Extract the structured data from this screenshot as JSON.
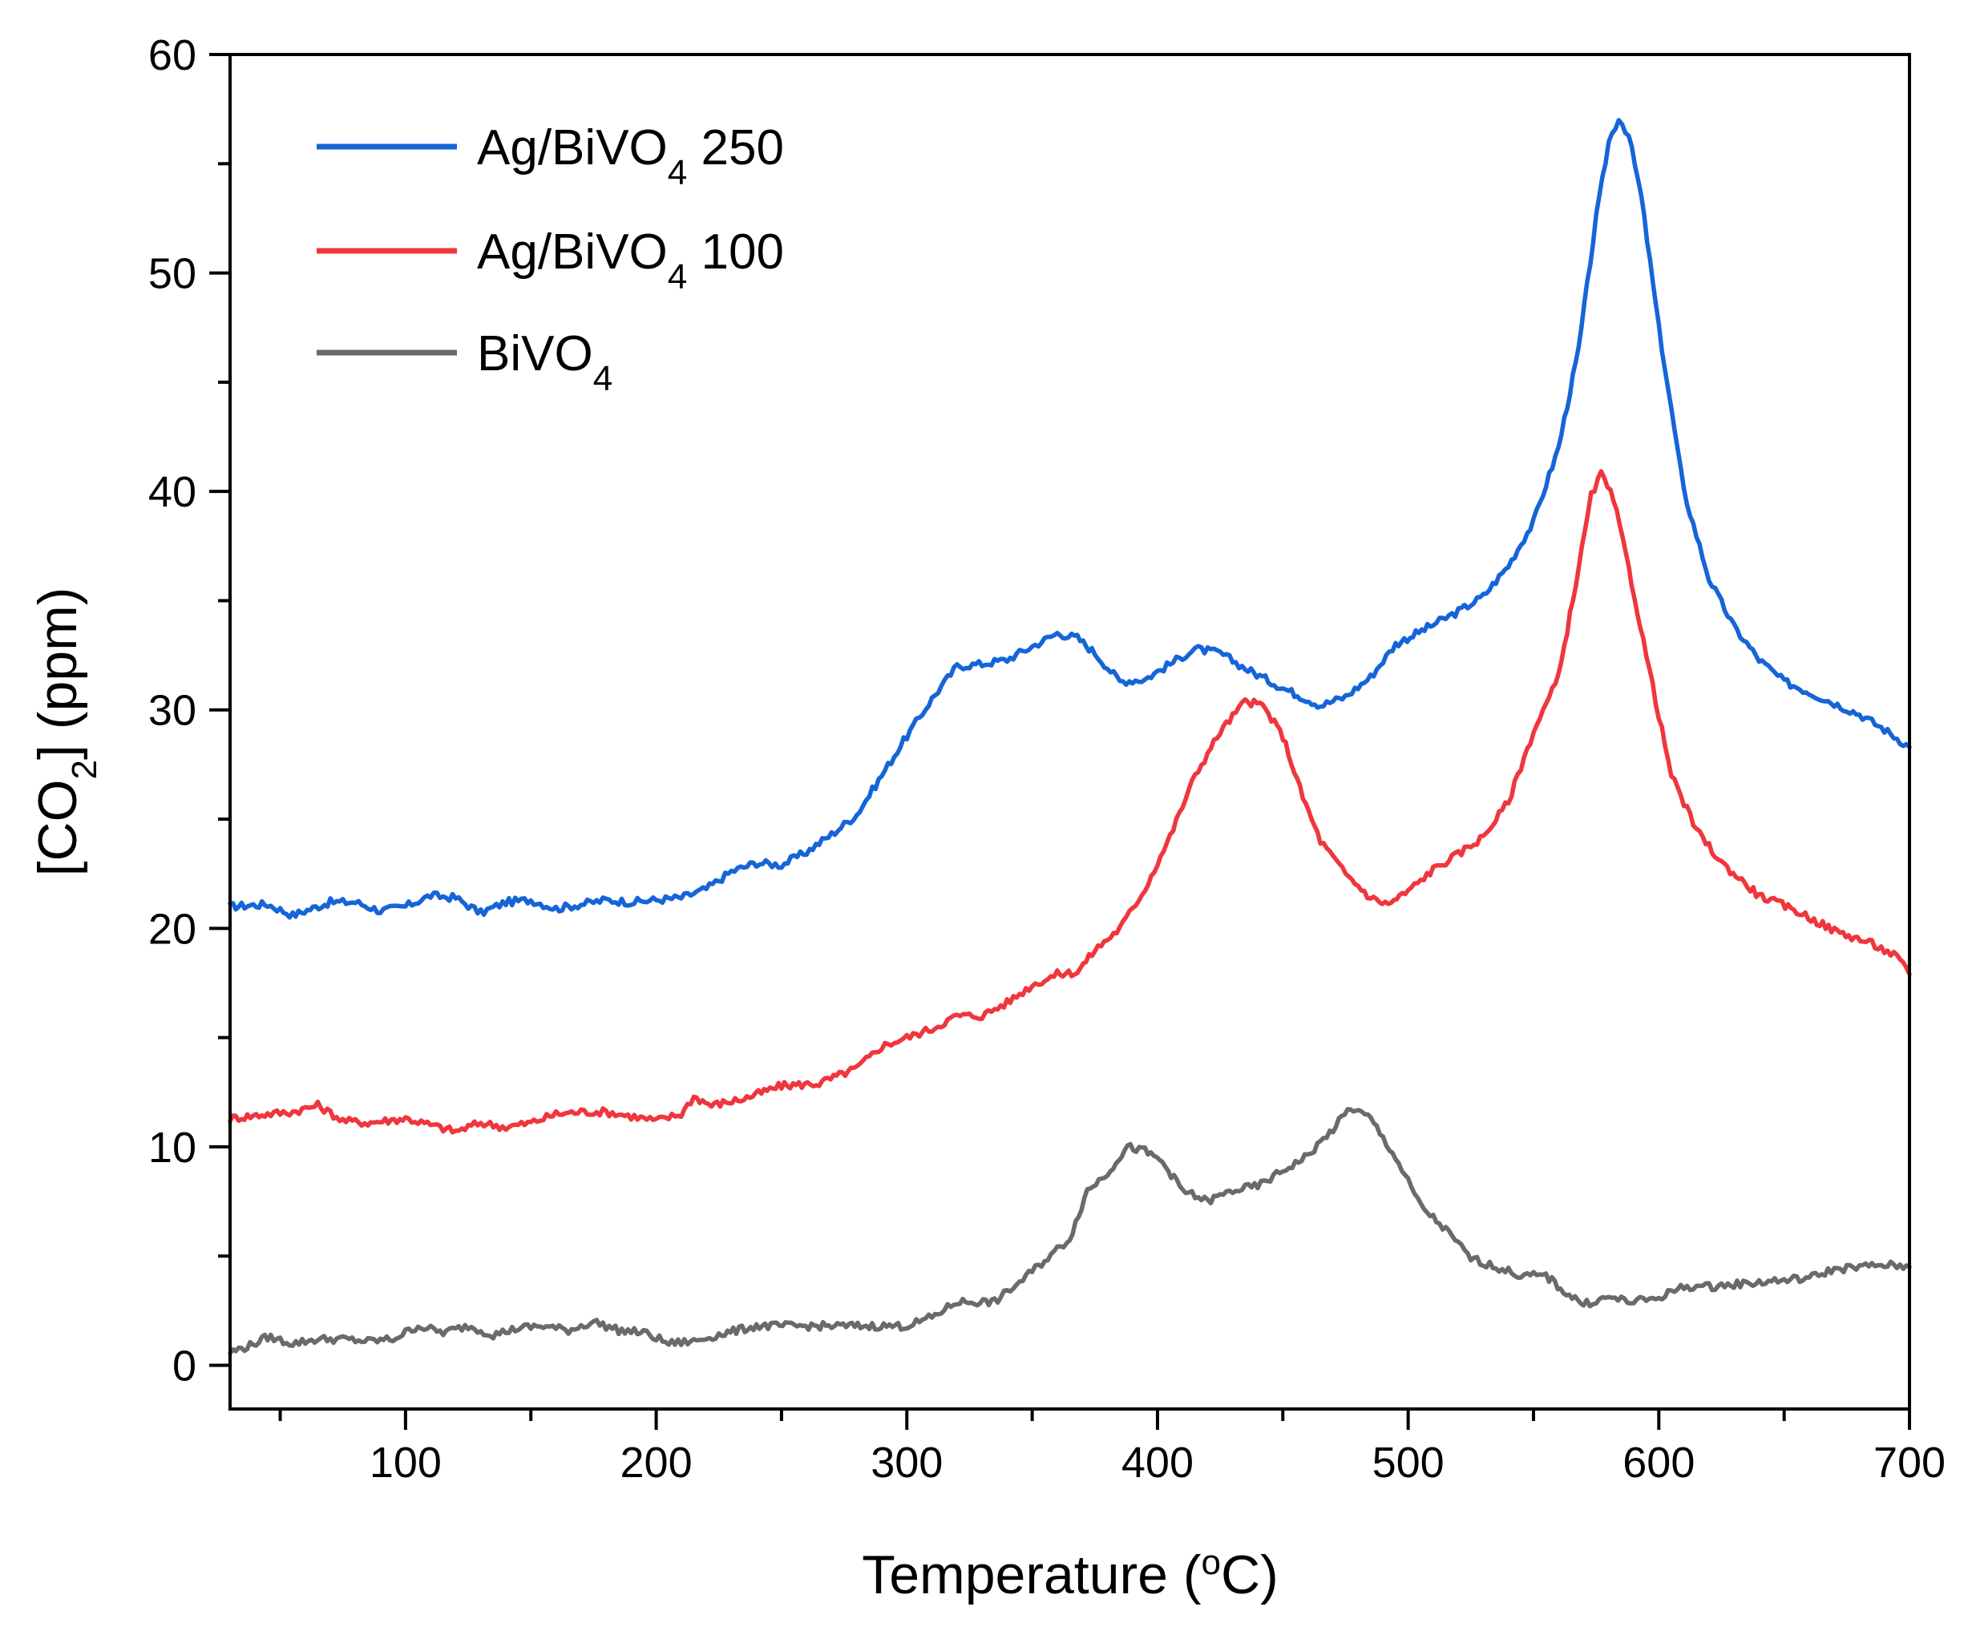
{
  "chart_data": {
    "type": "line",
    "title": "",
    "xlabel": "Temperature (oC)",
    "xlabel_parts": {
      "main": "Temperature (",
      "sup": "o",
      "tail": "C)"
    },
    "ylabel": "[CO2] (ppm)",
    "ylabel_parts": {
      "main": "[CO",
      "sub": "2",
      "tail": "] (ppm)"
    },
    "xlim": [
      30,
      700
    ],
    "ylim": [
      -2,
      60
    ],
    "xticks": [
      100,
      200,
      300,
      400,
      500,
      600,
      700
    ],
    "xtick_labels": [
      "100",
      "200",
      "300",
      "400",
      "500",
      "600",
      "700"
    ],
    "yticks": [
      0,
      10,
      20,
      30,
      40,
      50,
      60
    ],
    "ytick_labels": [
      "0",
      "10",
      "20",
      "30",
      "40",
      "50",
      "60"
    ],
    "grid": false,
    "legend_position": "top-left",
    "series": [
      {
        "name": "Ag/BiVO4 250",
        "label_parts": {
          "main": "Ag/BiVO",
          "sub": "4",
          "tail": " 250"
        },
        "color": "#1565d8",
        "points": [
          [
            30,
            21.0
          ],
          [
            45,
            21.1
          ],
          [
            55,
            20.6
          ],
          [
            70,
            21.2
          ],
          [
            80,
            21.2
          ],
          [
            90,
            20.8
          ],
          [
            100,
            21.0
          ],
          [
            110,
            21.5
          ],
          [
            120,
            21.4
          ],
          [
            130,
            20.7
          ],
          [
            140,
            21.2
          ],
          [
            150,
            21.3
          ],
          [
            160,
            20.9
          ],
          [
            170,
            21.1
          ],
          [
            180,
            21.3
          ],
          [
            190,
            21.2
          ],
          [
            200,
            21.3
          ],
          [
            210,
            21.4
          ],
          [
            220,
            21.8
          ],
          [
            230,
            22.6
          ],
          [
            240,
            23.0
          ],
          [
            250,
            22.9
          ],
          [
            260,
            23.5
          ],
          [
            270,
            24.3
          ],
          [
            280,
            25.2
          ],
          [
            290,
            27.0
          ],
          [
            300,
            28.8
          ],
          [
            310,
            30.5
          ],
          [
            320,
            32.0
          ],
          [
            330,
            32.1
          ],
          [
            340,
            32.3
          ],
          [
            350,
            32.9
          ],
          [
            360,
            33.5
          ],
          [
            368,
            33.3
          ],
          [
            375,
            32.6
          ],
          [
            385,
            31.3
          ],
          [
            395,
            31.4
          ],
          [
            405,
            32.1
          ],
          [
            415,
            32.8
          ],
          [
            425,
            32.6
          ],
          [
            435,
            31.9
          ],
          [
            450,
            31.0
          ],
          [
            465,
            30.2
          ],
          [
            475,
            30.6
          ],
          [
            485,
            31.5
          ],
          [
            495,
            33.0
          ],
          [
            510,
            33.9
          ],
          [
            520,
            34.5
          ],
          [
            530,
            35.2
          ],
          [
            540,
            36.6
          ],
          [
            550,
            38.6
          ],
          [
            560,
            42.0
          ],
          [
            568,
            46.5
          ],
          [
            575,
            52.5
          ],
          [
            580,
            56.0
          ],
          [
            584,
            57.1
          ],
          [
            588,
            56.3
          ],
          [
            593,
            53.5
          ],
          [
            600,
            47.5
          ],
          [
            610,
            40.0
          ],
          [
            620,
            36.0
          ],
          [
            630,
            33.8
          ],
          [
            640,
            32.3
          ],
          [
            650,
            31.3
          ],
          [
            660,
            30.8
          ],
          [
            670,
            30.3
          ],
          [
            680,
            29.8
          ],
          [
            690,
            29.1
          ],
          [
            700,
            28.3
          ]
        ]
      },
      {
        "name": "Ag/BiVO4 100",
        "label_parts": {
          "main": "Ag/BiVO",
          "sub": "4",
          "tail": " 100"
        },
        "color": "#f0363d",
        "points": [
          [
            30,
            11.3
          ],
          [
            45,
            11.5
          ],
          [
            55,
            11.6
          ],
          [
            65,
            11.9
          ],
          [
            75,
            11.2
          ],
          [
            85,
            11.1
          ],
          [
            100,
            11.3
          ],
          [
            110,
            11.0
          ],
          [
            120,
            10.7
          ],
          [
            130,
            11.1
          ],
          [
            140,
            10.9
          ],
          [
            150,
            11.1
          ],
          [
            160,
            11.5
          ],
          [
            170,
            11.6
          ],
          [
            180,
            11.6
          ],
          [
            190,
            11.4
          ],
          [
            200,
            11.2
          ],
          [
            210,
            11.5
          ],
          [
            215,
            12.3
          ],
          [
            222,
            11.9
          ],
          [
            235,
            12.2
          ],
          [
            250,
            12.8
          ],
          [
            265,
            12.9
          ],
          [
            280,
            13.6
          ],
          [
            290,
            14.6
          ],
          [
            300,
            15.0
          ],
          [
            310,
            15.4
          ],
          [
            320,
            16.0
          ],
          [
            330,
            16.0
          ],
          [
            340,
            16.6
          ],
          [
            350,
            17.4
          ],
          [
            360,
            17.9
          ],
          [
            368,
            18.0
          ],
          [
            375,
            19.0
          ],
          [
            385,
            20.0
          ],
          [
            395,
            21.8
          ],
          [
            405,
            24.2
          ],
          [
            415,
            27.0
          ],
          [
            425,
            29.0
          ],
          [
            435,
            30.4
          ],
          [
            442,
            30.2
          ],
          [
            450,
            28.8
          ],
          [
            458,
            26.0
          ],
          [
            465,
            24.0
          ],
          [
            475,
            22.5
          ],
          [
            485,
            21.4
          ],
          [
            492,
            21.1
          ],
          [
            500,
            21.7
          ],
          [
            510,
            22.7
          ],
          [
            520,
            23.4
          ],
          [
            530,
            24.2
          ],
          [
            540,
            25.8
          ],
          [
            550,
            29.0
          ],
          [
            560,
            31.5
          ],
          [
            568,
            36.5
          ],
          [
            573,
            39.8
          ],
          [
            577,
            40.8
          ],
          [
            582,
            39.6
          ],
          [
            588,
            36.5
          ],
          [
            595,
            32.5
          ],
          [
            605,
            27.0
          ],
          [
            615,
            24.5
          ],
          [
            625,
            23.0
          ],
          [
            640,
            21.5
          ],
          [
            655,
            20.8
          ],
          [
            670,
            19.9
          ],
          [
            685,
            19.3
          ],
          [
            695,
            18.7
          ],
          [
            700,
            17.9
          ]
        ]
      },
      {
        "name": "BiVO4",
        "label_parts": {
          "main": "BiVO",
          "sub": "4",
          "tail": ""
        },
        "color": "#6a6a6a",
        "points": [
          [
            30,
            0.6
          ],
          [
            38,
            0.9
          ],
          [
            45,
            1.3
          ],
          [
            55,
            1.0
          ],
          [
            65,
            1.2
          ],
          [
            75,
            1.2
          ],
          [
            85,
            1.1
          ],
          [
            95,
            1.2
          ],
          [
            105,
            1.8
          ],
          [
            115,
            1.5
          ],
          [
            125,
            1.8
          ],
          [
            135,
            1.4
          ],
          [
            145,
            1.7
          ],
          [
            155,
            1.8
          ],
          [
            165,
            1.6
          ],
          [
            175,
            2.0
          ],
          [
            185,
            1.6
          ],
          [
            195,
            1.5
          ],
          [
            205,
            1.0
          ],
          [
            215,
            1.1
          ],
          [
            225,
            1.4
          ],
          [
            240,
            1.8
          ],
          [
            255,
            1.8
          ],
          [
            270,
            1.8
          ],
          [
            285,
            1.8
          ],
          [
            300,
            1.8
          ],
          [
            310,
            2.2
          ],
          [
            320,
            2.9
          ],
          [
            335,
            2.9
          ],
          [
            345,
            3.8
          ],
          [
            355,
            4.8
          ],
          [
            365,
            5.8
          ],
          [
            372,
            8.0
          ],
          [
            380,
            8.8
          ],
          [
            388,
            10.0
          ],
          [
            395,
            9.8
          ],
          [
            402,
            9.3
          ],
          [
            410,
            8.0
          ],
          [
            420,
            7.5
          ],
          [
            430,
            8.0
          ],
          [
            440,
            8.2
          ],
          [
            450,
            8.9
          ],
          [
            460,
            9.6
          ],
          [
            470,
            10.8
          ],
          [
            477,
            11.8
          ],
          [
            485,
            11.3
          ],
          [
            495,
            9.5
          ],
          [
            505,
            7.3
          ],
          [
            515,
            6.2
          ],
          [
            525,
            4.9
          ],
          [
            535,
            4.5
          ],
          [
            545,
            4.1
          ],
          [
            555,
            4.1
          ],
          [
            562,
            3.4
          ],
          [
            570,
            2.8
          ],
          [
            580,
            3.1
          ],
          [
            590,
            2.9
          ],
          [
            600,
            3.1
          ],
          [
            610,
            3.6
          ],
          [
            620,
            3.6
          ],
          [
            630,
            3.7
          ],
          [
            640,
            3.8
          ],
          [
            650,
            3.9
          ],
          [
            660,
            4.0
          ],
          [
            670,
            4.4
          ],
          [
            680,
            4.5
          ],
          [
            690,
            4.6
          ],
          [
            700,
            4.5
          ]
        ]
      }
    ]
  }
}
